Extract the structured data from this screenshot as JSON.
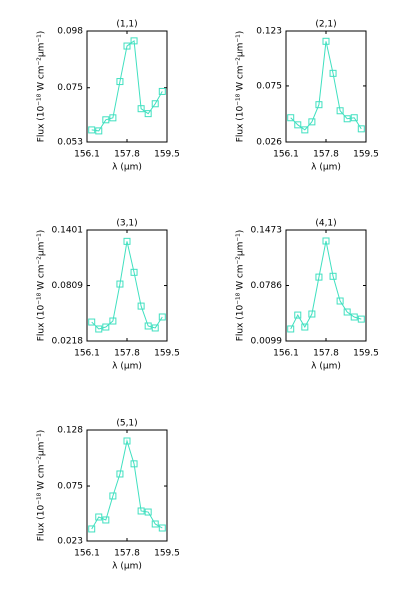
{
  "chart_data": [
    {
      "type": "line",
      "title": "(1,1)",
      "x_label": "λ (μm)",
      "y_label": "Flux (10⁻¹⁸ W cm⁻²μm⁻¹)",
      "x": [
        156.3,
        156.6,
        156.9,
        157.2,
        157.5,
        157.8,
        158.1,
        158.4,
        158.7,
        159.0,
        159.3
      ],
      "series": [
        {
          "color": "#40e0c0",
          "values": [
            0.0579,
            0.0575,
            0.062,
            0.0628,
            0.0775,
            0.0919,
            0.094,
            0.0665,
            0.0645,
            0.0685,
            0.0735
          ]
        }
      ],
      "xlim": [
        156.1,
        159.5
      ],
      "xticks": [
        156.1,
        157.8,
        159.5
      ],
      "ylim": [
        0.053,
        0.098
      ],
      "yticks": [
        0.053,
        0.075,
        0.098
      ]
    },
    {
      "type": "line",
      "title": "(2,1)",
      "x_label": "λ (μm)",
      "y_label": "Flux (10⁻¹⁸ W cm⁻²μm⁻¹)",
      "x": [
        156.3,
        156.6,
        156.9,
        157.2,
        157.5,
        157.8,
        158.1,
        158.4,
        158.7,
        159.0,
        159.3
      ],
      "series": [
        {
          "color": "#40e0c0",
          "values": [
            0.0472,
            0.041,
            0.0366,
            0.0436,
            0.0586,
            0.114,
            0.086,
            0.0533,
            0.0463,
            0.0472,
            0.0375
          ]
        }
      ],
      "xlim": [
        156.1,
        159.5
      ],
      "xticks": [
        156.1,
        157.8,
        159.5
      ],
      "ylim": [
        0.026,
        0.123
      ],
      "yticks": [
        0.026,
        0.075,
        0.123
      ]
    },
    {
      "type": "line",
      "title": "(3,1)",
      "x_label": "λ (μm)",
      "y_label": "Flux (10⁻¹⁸ W cm⁻²μm⁻¹)",
      "x": [
        156.3,
        156.6,
        156.9,
        157.2,
        157.5,
        157.8,
        158.1,
        158.4,
        158.7,
        159.0,
        159.3
      ],
      "series": [
        {
          "color": "#40e0c0",
          "values": [
            0.042,
            0.0346,
            0.0367,
            0.0431,
            0.0825,
            0.128,
            0.095,
            0.059,
            0.0378,
            0.0357,
            0.0474
          ]
        }
      ],
      "xlim": [
        156.1,
        159.5
      ],
      "xticks": [
        156.1,
        157.8,
        159.5
      ],
      "ylim": [
        0.0218,
        0.1401
      ],
      "yticks": [
        0.0218,
        0.0809,
        0.1401
      ]
    },
    {
      "type": "line",
      "title": "(4,1)",
      "x_label": "λ (μm)",
      "y_label": "Flux (10⁻¹⁸ W cm⁻²μm⁻¹)",
      "x": [
        156.3,
        156.6,
        156.9,
        157.2,
        157.5,
        157.8,
        158.1,
        158.4,
        158.7,
        159.0,
        159.3
      ],
      "series": [
        {
          "color": "#40e0c0",
          "values": [
            0.0248,
            0.042,
            0.0272,
            0.0433,
            0.089,
            0.1337,
            0.09,
            0.0594,
            0.0458,
            0.0396,
            0.037
          ]
        }
      ],
      "xlim": [
        156.1,
        159.5
      ],
      "xticks": [
        156.1,
        157.8,
        159.5
      ],
      "ylim": [
        0.0099,
        0.1473
      ],
      "yticks": [
        0.0099,
        0.0786,
        0.1473
      ]
    },
    {
      "type": "line",
      "title": "(5,1)",
      "x_label": "λ (μm)",
      "y_label": "Flux (10⁻¹⁸ W cm⁻²μm⁻¹)",
      "x": [
        156.3,
        156.6,
        156.9,
        157.2,
        157.5,
        157.8,
        158.1,
        158.4,
        158.7,
        159.0,
        159.3
      ],
      "series": [
        {
          "color": "#40e0c0",
          "values": [
            0.0344,
            0.0457,
            0.0429,
            0.0656,
            0.0864,
            0.1176,
            0.096,
            0.0514,
            0.0504,
            0.0391,
            0.0353
          ]
        }
      ],
      "xlim": [
        156.1,
        159.5
      ],
      "xticks": [
        156.1,
        157.8,
        159.5
      ],
      "ylim": [
        0.023,
        0.128
      ],
      "yticks": [
        0.023,
        0.075,
        0.128
      ]
    }
  ]
}
